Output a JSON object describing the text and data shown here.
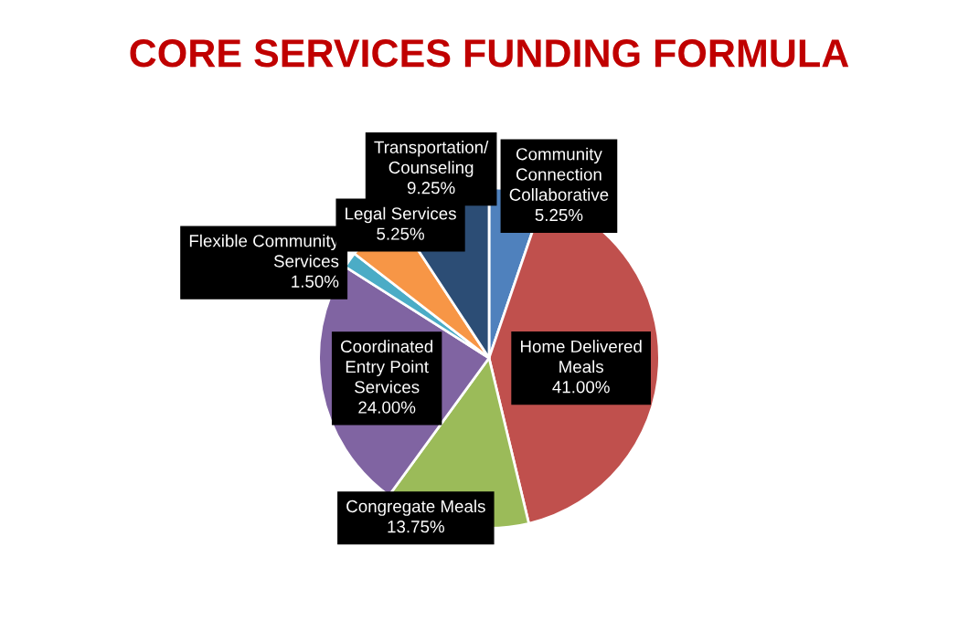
{
  "chart_data": {
    "type": "pie",
    "title": "CORE SERVICES FUNDING FORMULA",
    "categories": [
      "Community\nConnection\nCollaborative",
      "Home Delivered\nMeals",
      "Congregate Meals",
      "Coordinated\nEntry Point\nServices",
      "Flexible Community\nServices",
      "Legal Services",
      "Transportation/\nCounseling"
    ],
    "values": [
      5.25,
      41.0,
      13.75,
      24.0,
      1.5,
      5.25,
      9.25
    ],
    "value_labels": [
      "5.25%",
      "41.00%",
      "13.75%",
      "24.00%",
      "1.50%",
      "5.25%",
      "9.25%"
    ],
    "colors": [
      "#4f81bd",
      "#c0504d",
      "#9bbb59",
      "#8064a2",
      "#4bacc6",
      "#f79646",
      "#2c4d75"
    ],
    "data_labels": true,
    "legend": false
  }
}
